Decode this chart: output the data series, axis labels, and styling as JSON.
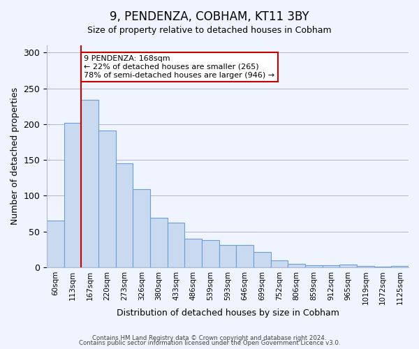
{
  "title": "9, PENDENZA, COBHAM, KT11 3BY",
  "subtitle": "Size of property relative to detached houses in Cobham",
  "xlabel": "Distribution of detached houses by size in Cobham",
  "ylabel": "Number of detached properties",
  "bar_color": "#c9d9f0",
  "bar_edge_color": "#6a9fd8",
  "bin_labels": [
    "60sqm",
    "113sqm",
    "167sqm",
    "220sqm",
    "273sqm",
    "326sqm",
    "380sqm",
    "433sqm",
    "486sqm",
    "539sqm",
    "593sqm",
    "646sqm",
    "699sqm",
    "752sqm",
    "806sqm",
    "859sqm",
    "912sqm",
    "965sqm",
    "1019sqm",
    "1072sqm",
    "1125sqm"
  ],
  "bar_values": [
    65,
    202,
    234,
    191,
    145,
    109,
    69,
    62,
    40,
    38,
    31,
    31,
    21,
    10,
    5,
    3,
    3,
    4,
    2,
    1,
    2
  ],
  "property_line_label": "9 PENDENZA: 168sqm",
  "annotation_line1": "← 22% of detached houses are smaller (265)",
  "annotation_line2": "78% of semi-detached houses are larger (946) →",
  "annotation_box_color": "#ffffff",
  "annotation_box_edge_color": "#cc0000",
  "ylim": [
    0,
    310
  ],
  "yticks": [
    0,
    50,
    100,
    150,
    200,
    250,
    300
  ],
  "footer_line1": "Contains HM Land Registry data © Crown copyright and database right 2024.",
  "footer_line2": "Contains public sector information licensed under the Open Government Licence v3.0.",
  "background_color": "#f0f4ff",
  "property_bar_index": 2
}
